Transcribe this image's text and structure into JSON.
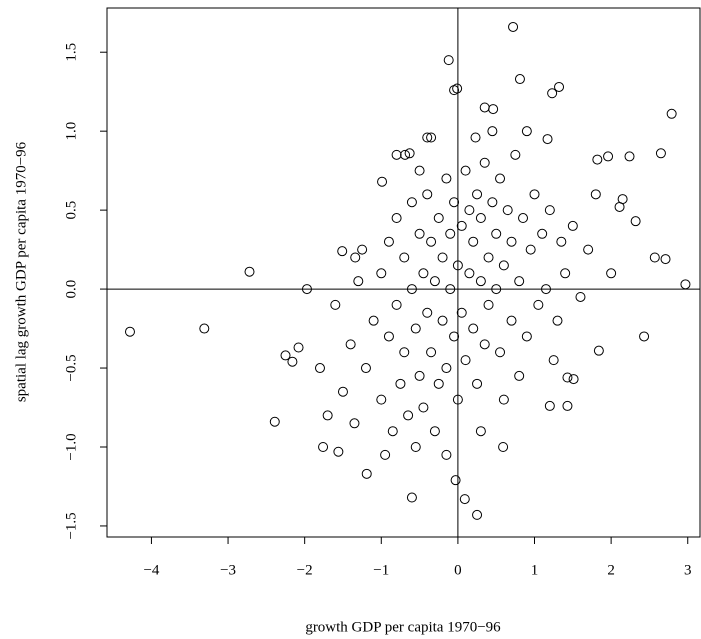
{
  "chart_data": {
    "type": "scatter",
    "x_label": "growth GDP per capita 1970−96",
    "y_label": "spatial lag growth GDP per capita 1970−96",
    "x": [
      -4.28,
      -3.31,
      -2.72,
      -2.39,
      -0.12,
      -0.05,
      -0.01,
      0.72,
      0.81,
      0.35,
      0.46,
      1.23,
      1.32,
      2.79,
      1.17,
      1.96,
      2.24,
      2.65,
      2.97,
      2.43,
      1.84,
      1.43,
      1.51,
      1.2,
      1.43,
      0.59,
      -0.03,
      0.09,
      0.25,
      -0.6,
      -1.76,
      -1.56,
      -1.19,
      -2.16,
      -2.08,
      -1.51,
      -1.34,
      -0.99,
      -0.69,
      -0.63,
      -0.4,
      -0.35,
      0.23,
      2.15,
      2.11,
      2.32,
      2.57,
      2.71,
      1.82,
      -1.97,
      -2.25,
      -1.2,
      -1.1,
      -1.0,
      -1.0,
      -0.9,
      -0.9,
      -0.85,
      -0.8,
      -0.8,
      -0.75,
      -0.7,
      -0.7,
      -0.65,
      -0.6,
      -0.6,
      -0.55,
      -0.55,
      -0.5,
      -0.5,
      -0.45,
      -0.45,
      -0.4,
      -0.4,
      -0.35,
      -0.35,
      -0.3,
      -0.3,
      -0.25,
      -0.25,
      -0.2,
      -0.2,
      -0.15,
      -0.15,
      -0.1,
      -0.1,
      -0.05,
      -0.05,
      0.0,
      0.0,
      0.05,
      0.05,
      0.1,
      0.1,
      0.15,
      0.15,
      0.2,
      0.2,
      0.25,
      0.25,
      0.3,
      0.3,
      0.35,
      0.35,
      0.4,
      0.4,
      0.45,
      0.5,
      0.5,
      0.55,
      0.55,
      0.6,
      0.65,
      0.7,
      0.7,
      0.75,
      0.8,
      0.85,
      0.9,
      0.95,
      1.0,
      1.05,
      1.1,
      1.15,
      1.2,
      1.3,
      1.35,
      1.4,
      1.5,
      1.6,
      1.7,
      -1.4,
      -1.3,
      -1.5,
      -1.6,
      -1.35,
      -1.25,
      -0.95,
      0.45,
      -0.5,
      0.8,
      0.6,
      -0.15,
      1.25,
      -1.7,
      1.8,
      2.0,
      -1.8,
      0.9,
      -0.8,
      0.3
    ],
    "values": [
      -0.27,
      -0.25,
      0.11,
      -0.84,
      1.45,
      1.26,
      1.27,
      1.66,
      1.33,
      1.15,
      1.14,
      1.24,
      1.28,
      1.11,
      0.95,
      0.84,
      0.84,
      0.86,
      0.03,
      -0.3,
      -0.39,
      -0.56,
      -0.57,
      -0.74,
      -0.74,
      -1.0,
      -1.21,
      -1.33,
      -1.43,
      -1.32,
      -1.0,
      -1.03,
      -1.17,
      -0.46,
      -0.37,
      0.24,
      0.2,
      0.68,
      0.85,
      0.86,
      0.96,
      0.96,
      0.96,
      0.57,
      0.52,
      0.43,
      0.2,
      0.19,
      0.82,
      0.0,
      -0.42,
      -0.5,
      -0.2,
      0.1,
      -0.7,
      -0.3,
      0.3,
      -0.9,
      -0.1,
      0.45,
      -0.6,
      0.2,
      -0.4,
      -0.8,
      0.0,
      0.55,
      -0.25,
      -1.0,
      0.35,
      -0.55,
      0.1,
      -0.75,
      0.6,
      -0.15,
      -0.4,
      0.3,
      -0.9,
      0.05,
      0.45,
      -0.6,
      -0.2,
      0.2,
      0.7,
      -0.5,
      0.0,
      0.35,
      -0.3,
      0.55,
      -0.7,
      0.15,
      0.4,
      -0.15,
      0.75,
      -0.45,
      0.1,
      0.5,
      -0.25,
      0.3,
      0.6,
      -0.6,
      0.05,
      0.45,
      -0.35,
      0.8,
      0.2,
      -0.1,
      0.55,
      0.0,
      0.35,
      -0.4,
      0.7,
      0.15,
      0.5,
      -0.2,
      0.3,
      0.85,
      0.05,
      0.45,
      -0.3,
      0.25,
      0.6,
      -0.1,
      0.35,
      0.0,
      0.5,
      -0.2,
      0.3,
      0.1,
      0.4,
      -0.05,
      0.25,
      -0.35,
      0.05,
      -0.65,
      -0.1,
      -0.85,
      0.25,
      -1.05,
      1.0,
      0.75,
      -0.55,
      -0.7,
      -1.05,
      -0.45,
      -0.8,
      0.6,
      0.1,
      -0.5,
      1.0,
      0.85,
      -0.9
    ],
    "color": "#000000",
    "xlim": [
      -4.58,
      3.16
    ],
    "ylim": [
      -1.57,
      1.78
    ],
    "xticks": [
      {
        "value": -4,
        "label": "−4"
      },
      {
        "value": -3,
        "label": "−3"
      },
      {
        "value": -2,
        "label": "−2"
      },
      {
        "value": -1,
        "label": "−1"
      },
      0,
      1,
      2,
      3
    ],
    "yticks": [
      {
        "value": -1.5,
        "label": "−1.5"
      },
      {
        "value": -1,
        "label": "−1.0"
      },
      {
        "value": -0.5,
        "label": "−0.5"
      },
      {
        "value": 0,
        "label": "0.0"
      },
      0.5,
      {
        "value": 1,
        "label": "1.0"
      },
      1.5
    ],
    "hline": 0,
    "vline": 0
  }
}
